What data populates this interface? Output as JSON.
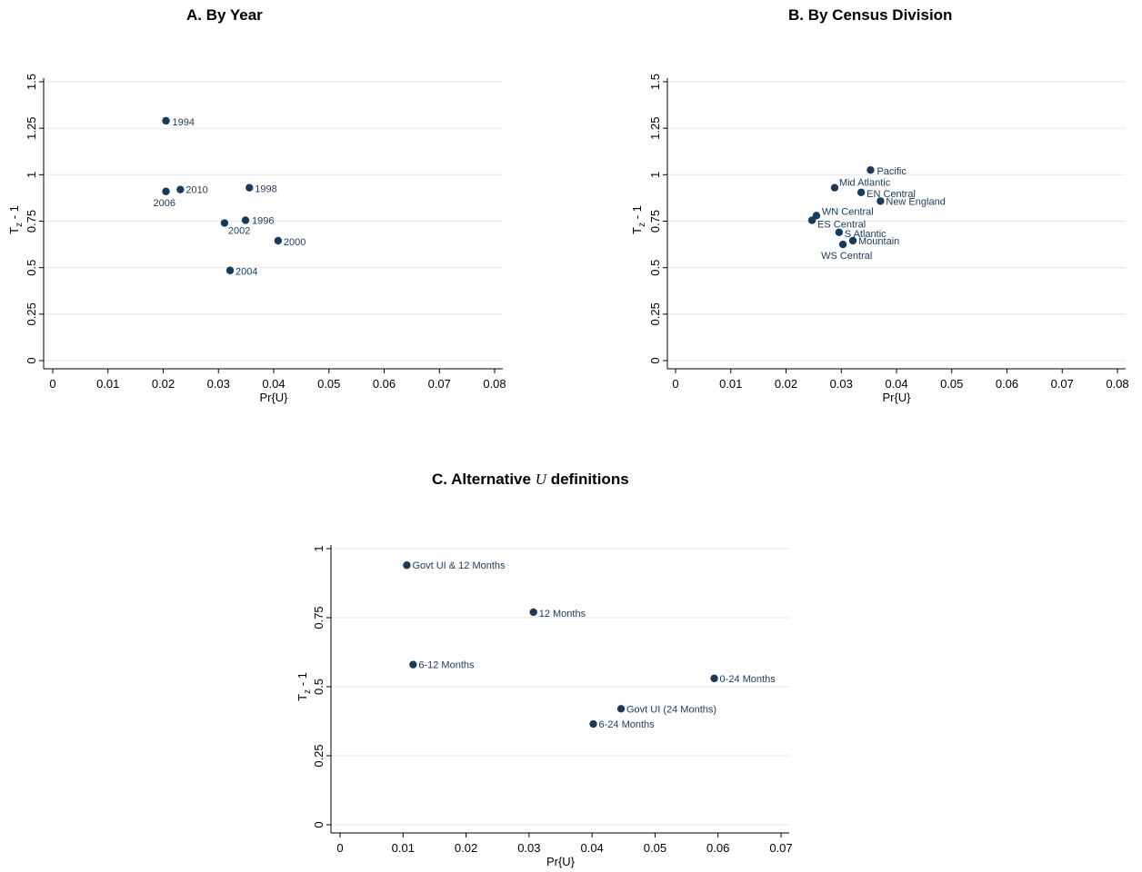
{
  "colors": {
    "marker": "#1a3a5c",
    "grid": "#e4e9ee",
    "axis": "#000000"
  },
  "chart_data": [
    {
      "type": "scatter",
      "title": "A. By Year",
      "xlabel": "Pr{U}",
      "ylabel": "T",
      "ylabel_sub": "z",
      "ylabel_suffix": " - 1",
      "xlim": [
        0,
        0.08
      ],
      "ylim": [
        0,
        1.5
      ],
      "xticks": [
        "0",
        "0.01",
        "0.02",
        "0.03",
        "0.04",
        "0.05",
        "0.06",
        "0.07",
        "0.08"
      ],
      "yticks": [
        "0",
        "0.25",
        "0.5",
        "0.75",
        "1",
        "1.25",
        "1.5"
      ],
      "grid": true,
      "points": [
        {
          "label": "1994",
          "x": 0.0205,
          "y": 1.29
        },
        {
          "label": "2006",
          "x": 0.0205,
          "y": 0.91
        },
        {
          "label": "2010",
          "x": 0.0231,
          "y": 0.92
        },
        {
          "label": "1998",
          "x": 0.0356,
          "y": 0.93
        },
        {
          "label": "2002",
          "x": 0.0311,
          "y": 0.74
        },
        {
          "label": "1996",
          "x": 0.0349,
          "y": 0.755
        },
        {
          "label": "2000",
          "x": 0.0408,
          "y": 0.645
        },
        {
          "label": "2004",
          "x": 0.0321,
          "y": 0.485
        }
      ]
    },
    {
      "type": "scatter",
      "title": "B. By Census Division",
      "xlabel": "Pr{U}",
      "ylabel": "T",
      "ylabel_sub": "z",
      "ylabel_suffix": " - 1",
      "xlim": [
        0,
        0.08
      ],
      "ylim": [
        0,
        1.5
      ],
      "xticks": [
        "0",
        "0.01",
        "0.02",
        "0.03",
        "0.04",
        "0.05",
        "0.06",
        "0.07",
        "0.08"
      ],
      "yticks": [
        "0",
        "0.25",
        "0.5",
        "0.75",
        "1",
        "1.25",
        "1.5"
      ],
      "grid": true,
      "points": [
        {
          "label": "Pacific",
          "x": 0.0353,
          "y": 1.025
        },
        {
          "label": "Mid Atlantic",
          "x": 0.0288,
          "y": 0.93
        },
        {
          "label": "EN Central",
          "x": 0.0336,
          "y": 0.905
        },
        {
          "label": "New England",
          "x": 0.0371,
          "y": 0.858
        },
        {
          "label": "WN Central",
          "x": 0.0255,
          "y": 0.78
        },
        {
          "label": "ES Central",
          "x": 0.0247,
          "y": 0.755
        },
        {
          "label": "S Atlantic",
          "x": 0.0296,
          "y": 0.69
        },
        {
          "label": "Mountain",
          "x": 0.0321,
          "y": 0.645
        },
        {
          "label": "WS Central",
          "x": 0.0303,
          "y": 0.625
        }
      ]
    },
    {
      "type": "scatter",
      "title": "C. Alternative",
      "title_var": "U",
      "title_suffix": "definitions",
      "xlabel": "Pr{U}",
      "ylabel": "T",
      "ylabel_sub": "z",
      "ylabel_suffix": " - 1",
      "xlim": [
        0,
        0.07
      ],
      "ylim": [
        0,
        1
      ],
      "xticks": [
        "0",
        "0.01",
        "0.02",
        "0.03",
        "0.04",
        "0.05",
        "0.06",
        "0.07"
      ],
      "yticks": [
        "0",
        "0.25",
        "0.5",
        "0.75",
        "1"
      ],
      "grid": true,
      "points": [
        {
          "label": "Govt UI & 12 Months",
          "x": 0.0106,
          "y": 0.94
        },
        {
          "label": "12 Months",
          "x": 0.0307,
          "y": 0.77
        },
        {
          "label": "6-12 Months",
          "x": 0.0116,
          "y": 0.58
        },
        {
          "label": "0-24 Months",
          "x": 0.0594,
          "y": 0.53
        },
        {
          "label": "Govt UI (24 Months)",
          "x": 0.0446,
          "y": 0.42
        },
        {
          "label": "6-24 Months",
          "x": 0.0402,
          "y": 0.365
        }
      ]
    }
  ]
}
